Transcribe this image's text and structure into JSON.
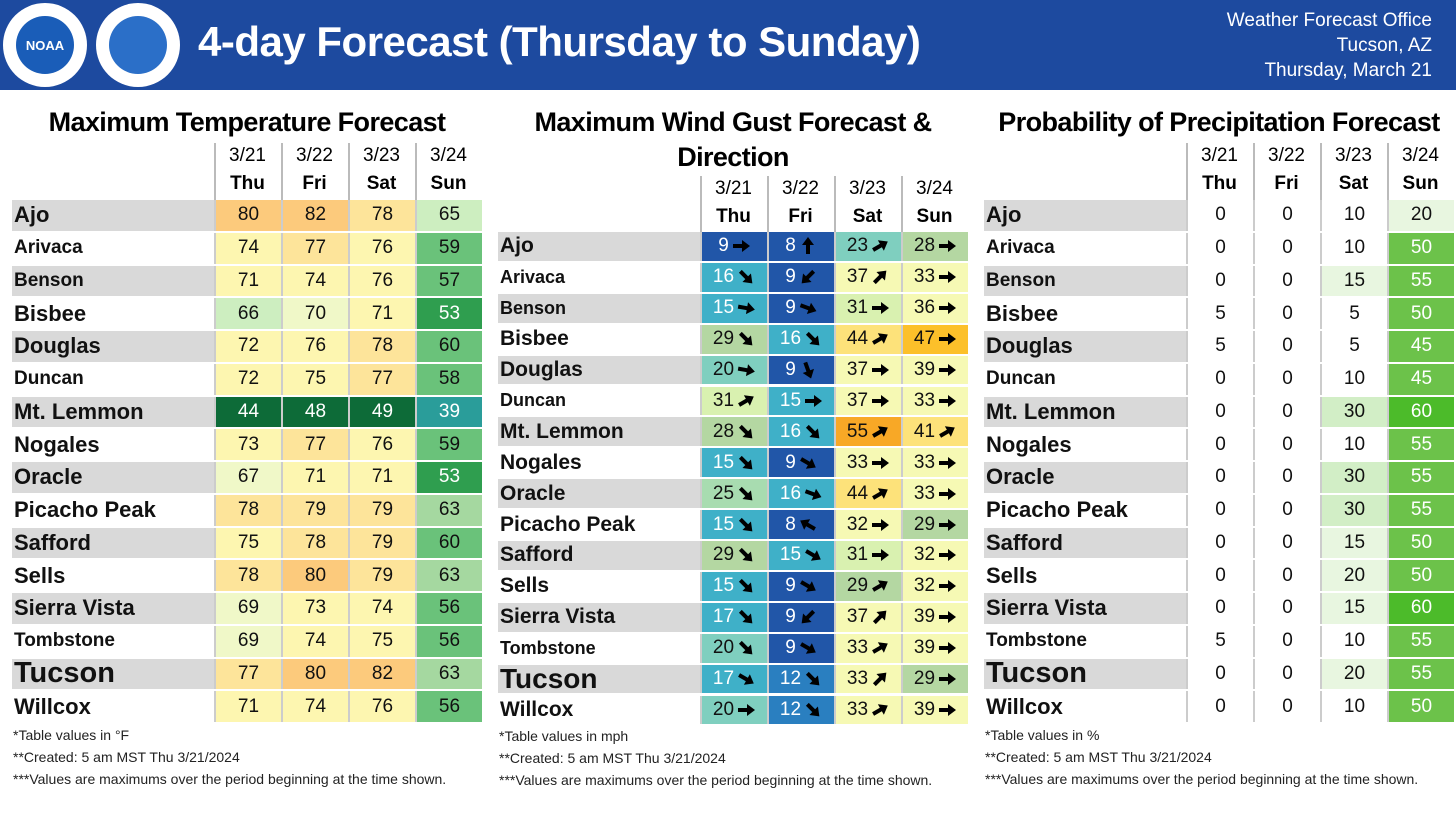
{
  "header": {
    "logo": "NOAA",
    "title": "4-day Forecast (Thursday to Sunday)",
    "office": [
      "Weather Forecast Office",
      "Tucson, AZ",
      "Thursday, March 21"
    ]
  },
  "dates": [
    "3/21",
    "3/22",
    "3/23",
    "3/24"
  ],
  "days": [
    "Thu",
    "Fri",
    "Sat",
    "Sun"
  ],
  "locations": [
    "Ajo",
    "Arivaca",
    "Benson",
    "Bisbee",
    "Douglas",
    "Duncan",
    "Mt. Lemmon",
    "Nogales",
    "Oracle",
    "Picacho Peak",
    "Safford",
    "Sells",
    "Sierra Vista",
    "Tombstone",
    "Tucson",
    "Willcox"
  ],
  "tables": [
    {
      "title": "Maximum Temperature Forecast",
      "kind": "temp",
      "values": [
        [
          80,
          82,
          78,
          65
        ],
        [
          74,
          77,
          76,
          59
        ],
        [
          71,
          74,
          76,
          57
        ],
        [
          66,
          70,
          71,
          53
        ],
        [
          72,
          76,
          78,
          60
        ],
        [
          72,
          75,
          77,
          58
        ],
        [
          44,
          48,
          49,
          39
        ],
        [
          73,
          77,
          76,
          59
        ],
        [
          67,
          71,
          71,
          53
        ],
        [
          78,
          79,
          79,
          63
        ],
        [
          75,
          78,
          79,
          60
        ],
        [
          78,
          80,
          79,
          63
        ],
        [
          69,
          73,
          74,
          56
        ],
        [
          69,
          74,
          75,
          56
        ],
        [
          77,
          80,
          82,
          63
        ],
        [
          71,
          74,
          76,
          56
        ]
      ],
      "notes": [
        "*Table values in °F",
        "**Created: 5 am MST Thu 3/21/2024",
        "***Values are maximums over the period beginning at the time shown."
      ]
    },
    {
      "title": "Maximum Wind Gust Forecast & Direction",
      "kind": "wind",
      "values": [
        [
          9,
          8,
          23,
          28
        ],
        [
          16,
          9,
          37,
          33
        ],
        [
          15,
          9,
          31,
          36
        ],
        [
          29,
          16,
          44,
          47
        ],
        [
          20,
          9,
          37,
          39
        ],
        [
          31,
          15,
          37,
          33
        ],
        [
          28,
          16,
          55,
          41
        ],
        [
          15,
          9,
          33,
          33
        ],
        [
          25,
          16,
          44,
          33
        ],
        [
          15,
          8,
          32,
          29
        ],
        [
          29,
          15,
          31,
          32
        ],
        [
          15,
          9,
          29,
          32
        ],
        [
          17,
          9,
          37,
          39
        ],
        [
          20,
          9,
          33,
          39
        ],
        [
          17,
          12,
          33,
          29
        ],
        [
          20,
          12,
          33,
          39
        ]
      ],
      "directions": [
        [
          90,
          0,
          60,
          90
        ],
        [
          135,
          225,
          45,
          90
        ],
        [
          100,
          110,
          90,
          90
        ],
        [
          135,
          135,
          60,
          90
        ],
        [
          100,
          160,
          90,
          90
        ],
        [
          60,
          90,
          90,
          90
        ],
        [
          135,
          135,
          60,
          60
        ],
        [
          135,
          120,
          90,
          90
        ],
        [
          135,
          110,
          60,
          90
        ],
        [
          135,
          300,
          90,
          90
        ],
        [
          135,
          120,
          90,
          90
        ],
        [
          135,
          120,
          60,
          90
        ],
        [
          135,
          225,
          45,
          90
        ],
        [
          135,
          120,
          60,
          90
        ],
        [
          120,
          135,
          45,
          90
        ],
        [
          90,
          135,
          60,
          90
        ]
      ],
      "notes": [
        "*Table values in mph",
        "**Created: 5 am MST Thu 3/21/2024",
        "***Values are maximums over the period beginning at the time shown."
      ]
    },
    {
      "title": "Probability of Precipitation Forecast",
      "kind": "pop",
      "values": [
        [
          0,
          0,
          10,
          20
        ],
        [
          0,
          0,
          10,
          50
        ],
        [
          0,
          0,
          15,
          55
        ],
        [
          5,
          0,
          5,
          50
        ],
        [
          5,
          0,
          5,
          45
        ],
        [
          0,
          0,
          10,
          45
        ],
        [
          0,
          0,
          30,
          60
        ],
        [
          0,
          0,
          10,
          55
        ],
        [
          0,
          0,
          30,
          55
        ],
        [
          0,
          0,
          30,
          55
        ],
        [
          0,
          0,
          15,
          50
        ],
        [
          0,
          0,
          20,
          50
        ],
        [
          0,
          0,
          15,
          60
        ],
        [
          5,
          0,
          10,
          55
        ],
        [
          0,
          0,
          20,
          55
        ],
        [
          0,
          0,
          10,
          50
        ]
      ],
      "notes": [
        "*Table values in %",
        "**Created: 5 am MST Thu 3/21/2024",
        "***Values are maximums over the period beginning at the time shown."
      ]
    }
  ]
}
